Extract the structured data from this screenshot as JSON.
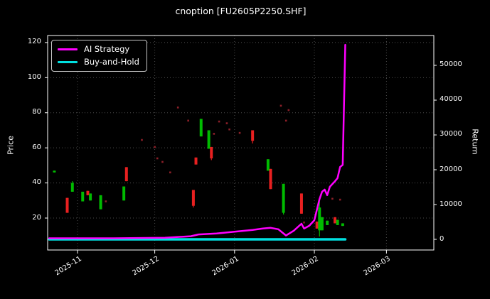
{
  "chart_data": {
    "type": "candlestick",
    "title": "cnoption [FU2605P2250.SHF]",
    "background": "#000000",
    "grid": true,
    "grid_color": "#4d4d4d",
    "legend_position": "upper-left",
    "legend": {
      "items": [
        {
          "label": "AI Strategy",
          "color": "#ff00ff"
        },
        {
          "label": "Buy-and-Hold",
          "color": "#00e0e0"
        }
      ]
    },
    "axes": {
      "price": {
        "label": "Price",
        "side": "left",
        "min": 1.8,
        "max": 124.0,
        "ticks": [
          20,
          40,
          60,
          80,
          100,
          120
        ]
      },
      "ret": {
        "label": "Return",
        "side": "right",
        "min": -3060,
        "max": 58570,
        "ticks": [
          0,
          10000,
          20000,
          30000,
          40000,
          50000
        ]
      },
      "x": {
        "range": [
          "2025-10-20",
          "2026-03-18"
        ],
        "ticks": [
          {
            "date": "2025-11-01",
            "label": "2025-11"
          },
          {
            "date": "2025-12-01",
            "label": "2025-12"
          },
          {
            "date": "2026-01-01",
            "label": "2026-01"
          },
          {
            "date": "2026-02-01",
            "label": "2026-02"
          },
          {
            "date": "2026-03-01",
            "label": "2026-03"
          }
        ]
      }
    },
    "colors": {
      "up": "#00bb00",
      "down": "#e82020",
      "dot": "#8c1f28",
      "spine": "#ffffff",
      "text": "#ffffff"
    },
    "candles": [
      {
        "date": "2025-10-23",
        "open": 46,
        "close": 47
      },
      {
        "date": "2025-10-28",
        "open": 31.5,
        "close": 23
      },
      {
        "date": "2025-10-30",
        "open": 35,
        "close": 40,
        "high": 41
      },
      {
        "date": "2025-11-03",
        "open": 29.5,
        "close": 35
      },
      {
        "date": "2025-11-05",
        "open": 35.5,
        "close": 33
      },
      {
        "date": "2025-11-06",
        "open": 30,
        "close": 34
      },
      {
        "date": "2025-11-10",
        "open": 25,
        "close": 33
      },
      {
        "date": "2025-11-19",
        "open": 30,
        "close": 38
      },
      {
        "date": "2025-11-20",
        "open": 49,
        "close": 41
      },
      {
        "date": "2025-12-16",
        "open": 36,
        "close": 27,
        "low": 26
      },
      {
        "date": "2025-12-17",
        "open": 54.5,
        "close": 50.5
      },
      {
        "date": "2025-12-19",
        "open": 66.5,
        "close": 76.5
      },
      {
        "date": "2025-12-22",
        "open": 59.5,
        "close": 70
      },
      {
        "date": "2025-12-23",
        "open": 60.5,
        "close": 54,
        "low": 53
      },
      {
        "date": "2026-01-08",
        "open": 70,
        "close": 64,
        "low": 62.5
      },
      {
        "date": "2026-01-14",
        "open": 47,
        "close": 53.5
      },
      {
        "date": "2026-01-15",
        "open": 48,
        "close": 36.5
      },
      {
        "date": "2026-01-20",
        "open": 23,
        "close": 39.5,
        "low": 22
      },
      {
        "date": "2026-01-27",
        "open": 34,
        "close": 22.5
      },
      {
        "date": "2026-02-02",
        "open": 18,
        "close": 14
      },
      {
        "date": "2026-02-03",
        "open": 13,
        "close": 26,
        "high": 29.5,
        "low": 9.5
      },
      {
        "date": "2026-02-04",
        "open": 13,
        "close": 20.5
      },
      {
        "date": "2026-02-06",
        "open": 16,
        "close": 18.5
      },
      {
        "date": "2026-02-09",
        "open": 20.5,
        "close": 17
      },
      {
        "date": "2026-02-10",
        "open": 16,
        "close": 19
      },
      {
        "date": "2026-02-12",
        "open": 15.5,
        "close": 17
      }
    ],
    "dots": [
      {
        "date": "2025-11-12",
        "price": 29.5
      },
      {
        "date": "2025-11-26",
        "price": 64.5
      },
      {
        "date": "2025-12-01",
        "price": 60.5
      },
      {
        "date": "2025-12-02",
        "price": 54
      },
      {
        "date": "2025-12-04",
        "price": 52
      },
      {
        "date": "2025-12-07",
        "price": 46
      },
      {
        "date": "2025-12-10",
        "price": 83
      },
      {
        "date": "2025-12-14",
        "price": 75.5
      },
      {
        "date": "2025-12-24",
        "price": 68
      },
      {
        "date": "2025-12-26",
        "price": 75
      },
      {
        "date": "2025-12-29",
        "price": 74
      },
      {
        "date": "2025-12-30",
        "price": 70.5
      },
      {
        "date": "2026-01-03",
        "price": 68.5
      },
      {
        "date": "2026-01-19",
        "price": 84
      },
      {
        "date": "2026-01-21",
        "price": 75.5
      },
      {
        "date": "2026-01-22",
        "price": 81.5
      },
      {
        "date": "2026-01-28",
        "price": 17.5
      },
      {
        "date": "2026-02-08",
        "price": 31
      },
      {
        "date": "2026-02-11",
        "price": 30.5
      }
    ],
    "series": [
      {
        "name": "AI Strategy",
        "axis": "ret",
        "color": "#ff00ff",
        "width": 2.5,
        "points": [
          {
            "date": "2025-10-21",
            "value": 300
          },
          {
            "date": "2025-11-15",
            "value": 300
          },
          {
            "date": "2025-12-05",
            "value": 450
          },
          {
            "date": "2025-12-15",
            "value": 900
          },
          {
            "date": "2025-12-18",
            "value": 1400
          },
          {
            "date": "2025-12-25",
            "value": 1700
          },
          {
            "date": "2026-01-01",
            "value": 2200
          },
          {
            "date": "2026-01-08",
            "value": 2700
          },
          {
            "date": "2026-01-12",
            "value": 3100
          },
          {
            "date": "2026-01-15",
            "value": 3300
          },
          {
            "date": "2026-01-18",
            "value": 2900
          },
          {
            "date": "2026-01-21",
            "value": 1100
          },
          {
            "date": "2026-01-24",
            "value": 2500
          },
          {
            "date": "2026-01-27",
            "value": 4500
          },
          {
            "date": "2026-01-28",
            "value": 3100
          },
          {
            "date": "2026-01-30",
            "value": 3900
          },
          {
            "date": "2026-02-01",
            "value": 5500
          },
          {
            "date": "2026-02-02",
            "value": 8600
          },
          {
            "date": "2026-02-03",
            "value": 11600
          },
          {
            "date": "2026-02-04",
            "value": 13700
          },
          {
            "date": "2026-02-05",
            "value": 14300
          },
          {
            "date": "2026-02-06",
            "value": 12700
          },
          {
            "date": "2026-02-07",
            "value": 15100
          },
          {
            "date": "2026-02-09",
            "value": 16700
          },
          {
            "date": "2026-02-10",
            "value": 17600
          },
          {
            "date": "2026-02-11",
            "value": 20800
          },
          {
            "date": "2026-02-12",
            "value": 21400
          },
          {
            "date": "2026-02-13",
            "value": 55900
          }
        ]
      },
      {
        "name": "Buy-and-Hold",
        "axis": "ret",
        "color": "#00e0e0",
        "width": 3.5,
        "points": [
          {
            "date": "2025-10-21",
            "value": 0
          },
          {
            "date": "2026-02-13",
            "value": 0
          }
        ]
      }
    ]
  }
}
